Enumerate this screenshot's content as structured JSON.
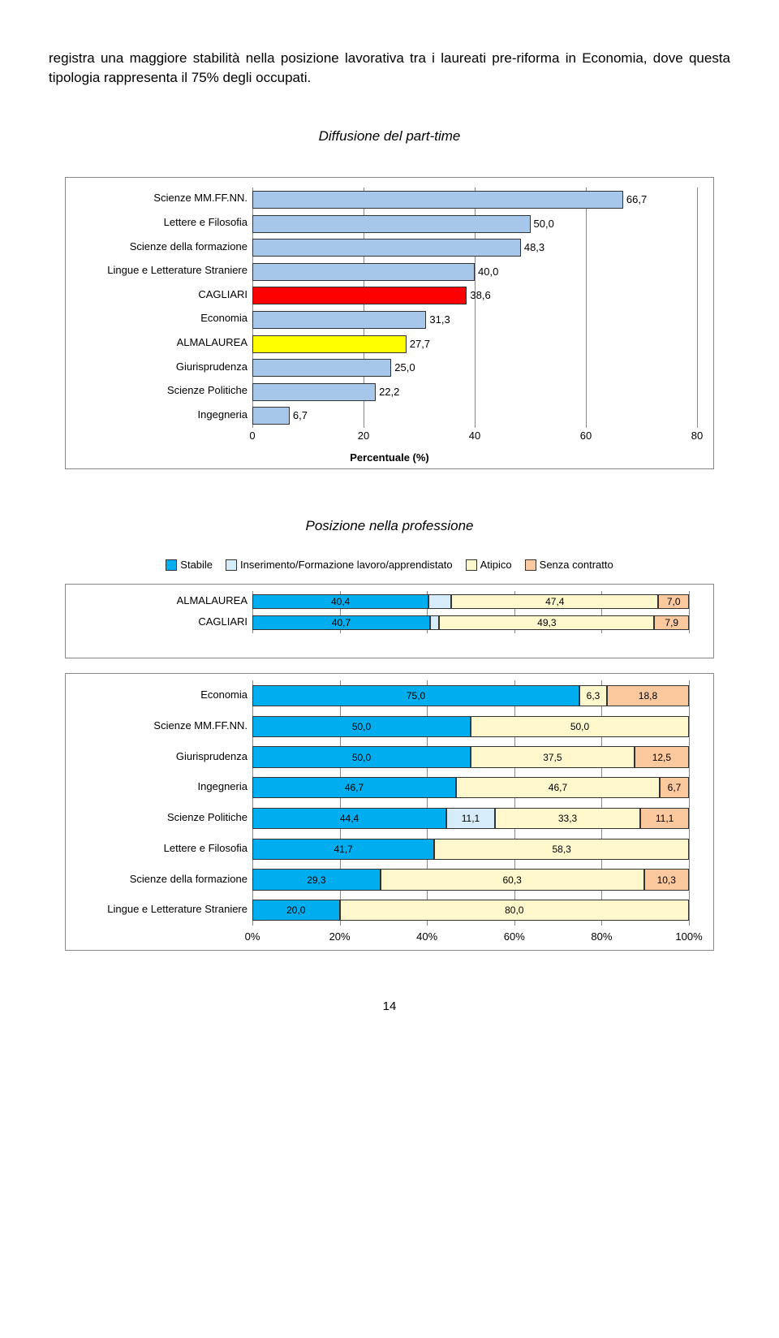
{
  "body_paragraph": "registra una maggiore stabilità nella posizione lavorativa tra i laureati pre-riforma in Economia, dove questa tipologia rappresenta il 75% degli occupati.",
  "chart1": {
    "title": "Diffusione del part-time",
    "type": "bar-horizontal",
    "xmin": 0,
    "xmax": 80,
    "xticks": [
      0,
      20,
      40,
      60,
      80
    ],
    "xlabel": "Percentuale (%)",
    "grid_color": "#888888",
    "colors": {
      "default": "#a7c7ea",
      "highlight_red": "#ff0000",
      "highlight_yellow": "#ffff00"
    },
    "rows": [
      {
        "label": "Scienze MM.FF.NN.",
        "value": 66.7,
        "color": "#a7c7ea"
      },
      {
        "label": "Lettere e Filosofia",
        "value": 50.0,
        "color": "#a7c7ea"
      },
      {
        "label": "Scienze della formazione",
        "value": 48.3,
        "color": "#a7c7ea"
      },
      {
        "label": "Lingue e Letterature Straniere",
        "value": 40.0,
        "color": "#a7c7ea"
      },
      {
        "label": "CAGLIARI",
        "value": 38.6,
        "color": "#ff0000"
      },
      {
        "label": "Economia",
        "value": 31.3,
        "color": "#a7c7ea"
      },
      {
        "label": "ALMALAUREA",
        "value": 27.7,
        "color": "#ffff00"
      },
      {
        "label": "Giurisprudenza",
        "value": 25.0,
        "color": "#a7c7ea"
      },
      {
        "label": "Scienze Politiche",
        "value": 22.2,
        "color": "#a7c7ea"
      },
      {
        "label": "Ingegneria",
        "value": 6.7,
        "color": "#a7c7ea"
      }
    ]
  },
  "chart2": {
    "title": "Posizione nella professione",
    "type": "stacked-bar-horizontal-percent",
    "xticks": [
      0,
      20,
      40,
      60,
      80,
      100
    ],
    "xtick_labels": [
      "0%",
      "20%",
      "40%",
      "60%",
      "80%",
      "100%"
    ],
    "legend": [
      {
        "label": "Stabile",
        "color": "#00aeef"
      },
      {
        "label": "Inserimento/Formazione lavoro/apprendistato",
        "color": "#d6ecfa"
      },
      {
        "label": "Atipico",
        "color": "#fff8cc"
      },
      {
        "label": "Senza contratto",
        "color": "#fbc99d"
      }
    ],
    "group_a": [
      {
        "label": "ALMALAUREA",
        "segments": [
          {
            "value": 40.4,
            "color": "#00aeef"
          },
          {
            "value": 5.2,
            "color": "#d6ecfa",
            "hide": true
          },
          {
            "value": 47.4,
            "color": "#fff8cc"
          },
          {
            "value": 7.0,
            "color": "#fbc99d"
          }
        ]
      },
      {
        "label": "CAGLIARI",
        "segments": [
          {
            "value": 40.7,
            "color": "#00aeef"
          },
          {
            "value": 2.1,
            "color": "#d6ecfa",
            "hide": true
          },
          {
            "value": 49.3,
            "color": "#fff8cc"
          },
          {
            "value": 7.9,
            "color": "#fbc99d"
          }
        ]
      }
    ],
    "group_b": [
      {
        "label": "Economia",
        "segments": [
          {
            "value": 75.0,
            "color": "#00aeef"
          },
          {
            "value": 6.3,
            "color": "#fff8cc"
          },
          {
            "value": 18.8,
            "color": "#fbc99d"
          }
        ]
      },
      {
        "label": "Scienze MM.FF.NN.",
        "segments": [
          {
            "value": 50.0,
            "color": "#00aeef"
          },
          {
            "value": 50.0,
            "color": "#fff8cc"
          }
        ]
      },
      {
        "label": "Giurisprudenza",
        "segments": [
          {
            "value": 50.0,
            "color": "#00aeef"
          },
          {
            "value": 37.5,
            "color": "#fff8cc"
          },
          {
            "value": 12.5,
            "color": "#fbc99d"
          }
        ]
      },
      {
        "label": "Ingegneria",
        "segments": [
          {
            "value": 46.7,
            "color": "#00aeef"
          },
          {
            "value": 46.7,
            "color": "#fff8cc"
          },
          {
            "value": 6.7,
            "color": "#fbc99d"
          }
        ]
      },
      {
        "label": "Scienze Politiche",
        "segments": [
          {
            "value": 44.4,
            "color": "#00aeef"
          },
          {
            "value": 11.1,
            "color": "#d6ecfa"
          },
          {
            "value": 33.3,
            "color": "#fff8cc"
          },
          {
            "value": 11.1,
            "color": "#fbc99d"
          }
        ]
      },
      {
        "label": "Lettere e Filosofia",
        "segments": [
          {
            "value": 41.7,
            "color": "#00aeef"
          },
          {
            "value": 58.3,
            "color": "#fff8cc"
          }
        ]
      },
      {
        "label": "Scienze della formazione",
        "segments": [
          {
            "value": 29.3,
            "color": "#00aeef"
          },
          {
            "value": 60.3,
            "color": "#fff8cc"
          },
          {
            "value": 10.3,
            "color": "#fbc99d"
          }
        ]
      },
      {
        "label": "Lingue e Letterature Straniere",
        "segments": [
          {
            "value": 20.0,
            "color": "#00aeef"
          },
          {
            "value": 80.0,
            "color": "#fff8cc"
          }
        ]
      }
    ]
  },
  "page_number": "14"
}
